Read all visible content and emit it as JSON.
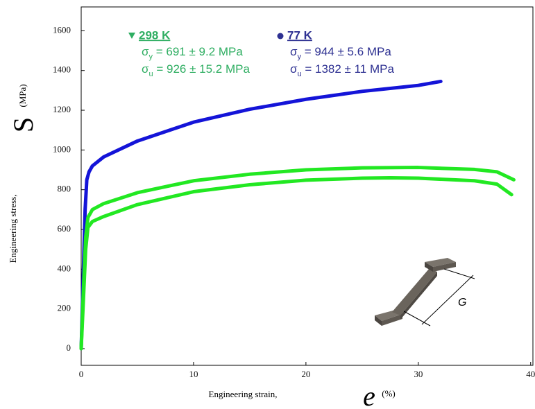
{
  "chart_data": {
    "type": "line",
    "xlim": [
      0,
      40.2
    ],
    "ylim": [
      -84,
      1720
    ],
    "xticks": [
      0,
      10,
      20,
      30,
      40
    ],
    "yticks": [
      0,
      200,
      400,
      600,
      800,
      1000,
      1200,
      1400,
      1600
    ],
    "x_label": "Engineering strain,",
    "x_symbol": "e",
    "x_unit": "(%)",
    "y_label": "Engineering stress,",
    "y_symbol": "S",
    "y_unit": "(MPa)",
    "series": [
      {
        "color": "#1414d8",
        "x": [
          0,
          0.2,
          0.35,
          0.5,
          0.7,
          1,
          2,
          5,
          10,
          15,
          20,
          25,
          30,
          32
        ],
        "values": [
          0,
          400,
          700,
          850,
          890,
          920,
          965,
          1045,
          1140,
          1205,
          1255,
          1295,
          1325,
          1345
        ]
      },
      {
        "color": "#22e822",
        "x": [
          0,
          0.2,
          0.4,
          0.6,
          1,
          2,
          5,
          10,
          15,
          20,
          25,
          30,
          35,
          37,
          38.5
        ],
        "values": [
          0,
          300,
          560,
          660,
          700,
          730,
          785,
          845,
          878,
          900,
          910,
          912,
          902,
          890,
          850
        ]
      },
      {
        "color": "#22e822",
        "x": [
          0,
          0.2,
          0.4,
          0.6,
          1,
          2,
          5,
          10,
          15,
          20,
          25,
          27.5,
          30,
          35,
          37,
          38.3
        ],
        "values": [
          0,
          250,
          500,
          610,
          640,
          665,
          725,
          790,
          825,
          848,
          858,
          860,
          858,
          845,
          828,
          775
        ]
      }
    ],
    "legend": [
      {
        "label": "298 K",
        "marker": "triangle",
        "color": "#2fae62",
        "lines": [
          {
            "symbol": "σ",
            "sub": "y",
            "text": " = 691 ±  9.2 MPa"
          },
          {
            "symbol": "σ",
            "sub": "u",
            "text": " = 926 ± 15.2 MPa"
          }
        ]
      },
      {
        "label": "77 K",
        "marker": "circle",
        "color": "#2e3192",
        "lines": [
          {
            "symbol": "σ",
            "sub": "y",
            "text": " = 944 ± 5.6 MPa"
          },
          {
            "symbol": "σ",
            "sub": "u",
            "text": " = 1382 ± 11 MPa"
          }
        ]
      }
    ],
    "specimen_label": "G"
  }
}
